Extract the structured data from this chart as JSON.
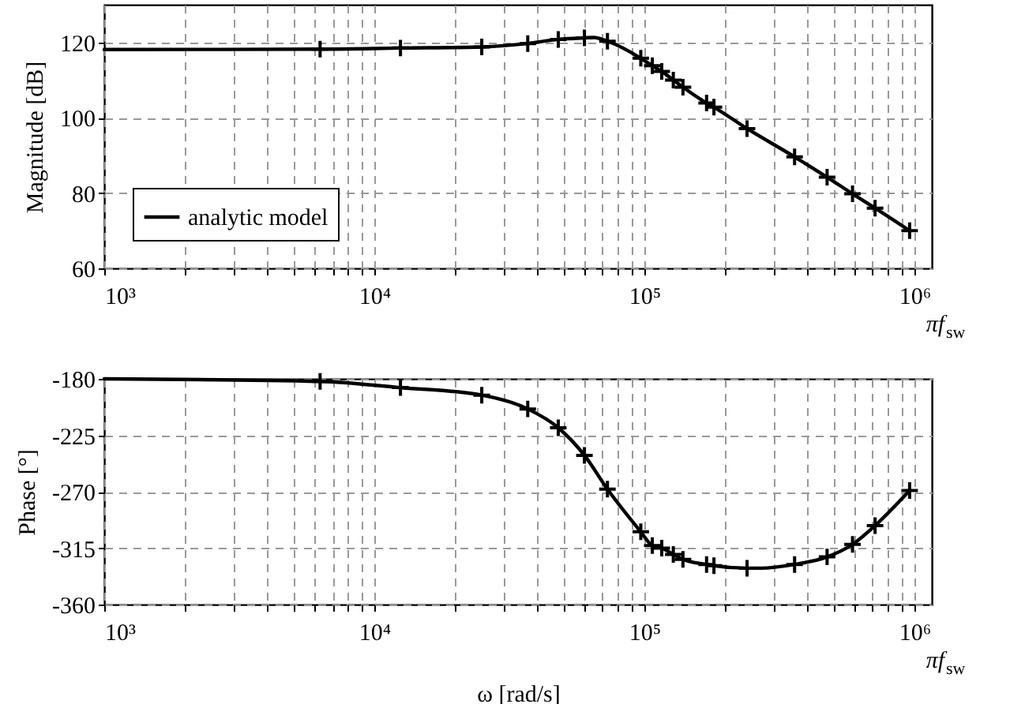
{
  "chart_data": [
    {
      "type": "line",
      "ylabel": "Magnitude [dB]",
      "annotations": [
        "πf$_{sw}$"
      ],
      "log": "x",
      "grid": true,
      "legend": "bottom left",
      "xlim": [
        1000,
        1160000
      ],
      "xticks": [
        {
          "value": 1000,
          "label": "10³"
        },
        {
          "value": 2000,
          "label": null
        },
        {
          "value": 3000,
          "label": null
        },
        {
          "value": 4000,
          "label": null
        },
        {
          "value": 5000,
          "label": null
        },
        {
          "value": 6000,
          "label": null
        },
        {
          "value": 7000,
          "label": null
        },
        {
          "value": 8000,
          "label": null
        },
        {
          "value": 9000,
          "label": null
        },
        {
          "value": 10000,
          "label": "10⁴"
        },
        {
          "value": 20000,
          "label": null
        },
        {
          "value": 30000,
          "label": null
        },
        {
          "value": 40000,
          "label": null
        },
        {
          "value": 50000,
          "label": null
        },
        {
          "value": 60000,
          "label": null
        },
        {
          "value": 70000,
          "label": null
        },
        {
          "value": 80000,
          "label": null
        },
        {
          "value": 90000,
          "label": null
        },
        {
          "value": 100000,
          "label": "10⁵"
        },
        {
          "value": 200000,
          "label": null
        },
        {
          "value": 300000,
          "label": null
        },
        {
          "value": 400000,
          "label": null
        },
        {
          "value": 500000,
          "label": null
        },
        {
          "value": 600000,
          "label": null
        },
        {
          "value": 700000,
          "label": null
        },
        {
          "value": 800000,
          "label": null
        },
        {
          "value": 900000,
          "label": null
        },
        {
          "value": 1000000,
          "label": "10⁶"
        }
      ],
      "ylim": [
        60,
        130
      ],
      "yticks": [
        60,
        80,
        100,
        120
      ],
      "series": [
        {
          "name": "analytic model",
          "type": "line",
          "color": "#000000",
          "line_style": "solid",
          "x": [
            1000,
            6300,
            12500,
            25000,
            37000,
            48000,
            60000,
            65000,
            73000,
            97000,
            107000,
            116000,
            128000,
            139000,
            170000,
            181000,
            240000,
            360000,
            475000,
            590000,
            715000,
            960000
          ],
          "values": [
            118.1,
            118.2,
            118.5,
            118.8,
            119.7,
            120.8,
            121.2,
            121.3,
            120.3,
            115.8,
            113.8,
            112.3,
            110.0,
            108.1,
            103.9,
            102.8,
            97.1,
            89.6,
            84.2,
            79.8,
            76.0,
            70.0
          ]
        },
        {
          "type": "scatter",
          "color": "#000000",
          "marker": "cross",
          "x": [
            6300,
            12500,
            25000,
            37000,
            48000,
            60000,
            73000,
            97000,
            107000,
            116000,
            128000,
            139000,
            170000,
            181000,
            240000,
            360000,
            475000,
            590000,
            715000,
            960000
          ],
          "values": [
            118.2,
            118.5,
            118.8,
            119.7,
            120.8,
            121.2,
            120.3,
            115.8,
            113.8,
            112.3,
            110.0,
            108.1,
            103.9,
            102.8,
            97.1,
            89.6,
            84.2,
            79.8,
            76.0,
            70.0
          ]
        }
      ]
    },
    {
      "type": "line",
      "xlabel": "ω [rad/s]",
      "ylabel": "Phase [°]",
      "annotations": [
        "πf$_{sw}$"
      ],
      "log": "x",
      "grid": true,
      "xlim": [
        1000,
        1160000
      ],
      "xticks": [
        {
          "value": 1000,
          "label": "10³"
        },
        {
          "value": 2000,
          "label": null
        },
        {
          "value": 3000,
          "label": null
        },
        {
          "value": 4000,
          "label": null
        },
        {
          "value": 5000,
          "label": null
        },
        {
          "value": 6000,
          "label": null
        },
        {
          "value": 7000,
          "label": null
        },
        {
          "value": 8000,
          "label": null
        },
        {
          "value": 9000,
          "label": null
        },
        {
          "value": 10000,
          "label": "10⁴"
        },
        {
          "value": 20000,
          "label": null
        },
        {
          "value": 30000,
          "label": null
        },
        {
          "value": 40000,
          "label": null
        },
        {
          "value": 50000,
          "label": null
        },
        {
          "value": 60000,
          "label": null
        },
        {
          "value": 70000,
          "label": null
        },
        {
          "value": 80000,
          "label": null
        },
        {
          "value": 90000,
          "label": null
        },
        {
          "value": 100000,
          "label": "10⁵"
        },
        {
          "value": 200000,
          "label": null
        },
        {
          "value": 300000,
          "label": null
        },
        {
          "value": 400000,
          "label": null
        },
        {
          "value": 500000,
          "label": null
        },
        {
          "value": 600000,
          "label": null
        },
        {
          "value": 700000,
          "label": null
        },
        {
          "value": 800000,
          "label": null
        },
        {
          "value": 900000,
          "label": null
        },
        {
          "value": 1000000,
          "label": "10⁶"
        }
      ],
      "ylim": [
        -360,
        -180
      ],
      "yticks": [
        -360,
        -315,
        -270,
        -225,
        -180
      ],
      "series": [
        {
          "type": "line",
          "color": "#000000",
          "line_style": "solid",
          "x": [
            1000,
            6300,
            12500,
            25000,
            37000,
            48000,
            60000,
            73000,
            97000,
            107000,
            116000,
            128000,
            139000,
            170000,
            181000,
            240000,
            270000,
            360000,
            475000,
            590000,
            715000,
            960000
          ],
          "values": [
            -180,
            -182,
            -187,
            -193,
            -204,
            -219,
            -241,
            -268,
            -302,
            -313,
            -315,
            -320,
            -324,
            -328,
            -329,
            -331,
            -331,
            -328,
            -322,
            -312,
            -297,
            -269
          ]
        },
        {
          "type": "scatter",
          "color": "#000000",
          "marker": "cross",
          "x": [
            6300,
            12500,
            25000,
            37000,
            48000,
            60000,
            73000,
            97000,
            107000,
            116000,
            128000,
            139000,
            170000,
            181000,
            240000,
            360000,
            475000,
            590000,
            715000,
            960000
          ],
          "values": [
            -182,
            -187,
            -193,
            -204,
            -219,
            -241,
            -268,
            -302,
            -313,
            -315,
            -320,
            -324,
            -328,
            -329,
            -331,
            -328,
            -322,
            -312,
            -297,
            -269
          ]
        }
      ]
    }
  ]
}
